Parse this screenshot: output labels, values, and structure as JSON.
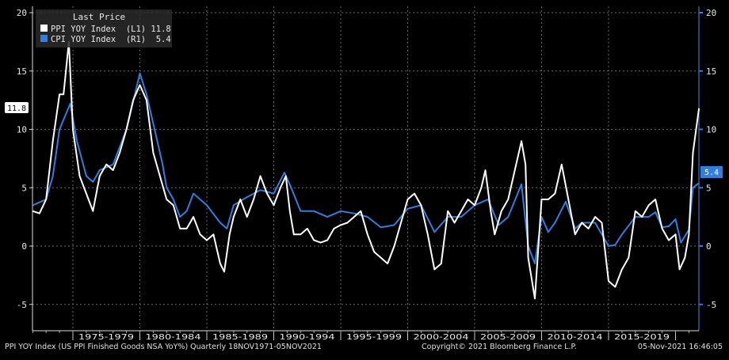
{
  "chart_data": {
    "type": "line",
    "title": "",
    "legend": {
      "header": "Last Price",
      "placement": "top-left",
      "entries": [
        {
          "label": "PPI YOY Index  (L1) 11.8",
          "color": "#ffffff"
        },
        {
          "label": "CPI YOY Index  (R1)  5.4",
          "color": "#2f7fe0"
        }
      ]
    },
    "xlim": [
      1971.9,
      2021.85
    ],
    "ylim_left": [
      -7,
      20
    ],
    "ylim_right": [
      -7,
      20
    ],
    "yticks": [
      -5,
      0,
      5,
      10,
      15,
      20
    ],
    "xtick_labels": [
      "1975-1979",
      "1980-1984",
      "1985-1989",
      "1990-1994",
      "1995-1999",
      "2000-2004",
      "2005-2009",
      "2010-2014",
      "2015-2019"
    ],
    "xtick_starts": [
      1975,
      1980,
      1985,
      1990,
      1995,
      2000,
      2005,
      2010,
      2015
    ],
    "grid": true,
    "last_value_labels": {
      "left": "11.8",
      "right": "5.4"
    },
    "series": [
      {
        "name": "PPI YOY Index",
        "axis": "left",
        "color": "#ffffff",
        "x": [
          1972,
          1972.5,
          1973,
          1973.5,
          1974,
          1974.3,
          1974.7,
          1975,
          1975.5,
          1976,
          1976.5,
          1977,
          1977.5,
          1978,
          1978.5,
          1979,
          1979.5,
          1980,
          1980.5,
          1981,
          1981.5,
          1982,
          1982.5,
          1983,
          1983.5,
          1984,
          1984.5,
          1985,
          1985.5,
          1986,
          1986.3,
          1986.7,
          1987,
          1987.5,
          1988,
          1988.5,
          1989,
          1989.5,
          1990,
          1990.5,
          1990.9,
          1991.2,
          1991.5,
          1992,
          1992.5,
          1993,
          1993.5,
          1994,
          1994.5,
          1995,
          1995.5,
          1996,
          1996.5,
          1997,
          1997.5,
          1998,
          1998.5,
          1999,
          1999.5,
          2000,
          2000.5,
          2001,
          2001.5,
          2002,
          2002.5,
          2003,
          2003.5,
          2004,
          2004.5,
          2005,
          2005.5,
          2005.8,
          2006.2,
          2006.5,
          2007,
          2007.5,
          2008,
          2008.5,
          2008.8,
          2009,
          2009.5,
          2010,
          2010.5,
          2011,
          2011.5,
          2012,
          2012.5,
          2013,
          2013.5,
          2014,
          2014.5,
          2015,
          2015.5,
          2016,
          2016.5,
          2017,
          2017.5,
          2018,
          2018.5,
          2019,
          2019.5,
          2020,
          2020.3,
          2020.7,
          2021,
          2021.3,
          2021.75
        ],
        "values": [
          3,
          2.8,
          4,
          9,
          13,
          13,
          17.5,
          10,
          6,
          4.5,
          3,
          6,
          7,
          6.5,
          8,
          10,
          12.5,
          13.8,
          12.5,
          8,
          6,
          4,
          3.5,
          1.5,
          1.5,
          2.5,
          1,
          0.5,
          1,
          -1.5,
          -2.2,
          1,
          2.5,
          4,
          2.5,
          4,
          6,
          4.5,
          3.5,
          5,
          6,
          3,
          1,
          1,
          1.5,
          0.5,
          0.3,
          0.5,
          1.5,
          1.8,
          2,
          2.5,
          3,
          1,
          -0.5,
          -1,
          -1.5,
          0,
          2,
          4,
          4.5,
          3.5,
          1,
          -2,
          -1.5,
          3,
          2,
          3,
          4,
          3.5,
          5,
          6.5,
          3,
          1,
          3,
          4,
          6.5,
          9,
          7,
          -1,
          -4.5,
          4,
          4,
          4.5,
          7,
          4,
          1,
          2,
          1.5,
          2.5,
          2,
          -3,
          -3.5,
          -2,
          -1,
          3,
          2.5,
          3.5,
          4,
          1.5,
          0.5,
          1,
          -2,
          -1,
          1,
          8,
          11.8
        ]
      },
      {
        "name": "CPI YOY Index",
        "axis": "right",
        "color": "#2f7fe0",
        "x": [
          1972,
          1973,
          1973.5,
          1974,
          1974.8,
          1975.3,
          1976,
          1976.5,
          1977,
          1978,
          1979,
          1980,
          1980.5,
          1981,
          1981.7,
          1982,
          1982.5,
          1983,
          1983.5,
          1984,
          1985,
          1986,
          1986.5,
          1987,
          1988,
          1989,
          1990,
          1990.8,
          1991.3,
          1992,
          1993,
          1994,
          1995,
          1996,
          1997,
          1998,
          1999,
          2000,
          2001,
          2002,
          2003,
          2004,
          2005,
          2006,
          2006.8,
          2007.5,
          2008.5,
          2009,
          2009.5,
          2010,
          2010.5,
          2011,
          2011.8,
          2012.5,
          2013,
          2014,
          2015,
          2015.5,
          2016,
          2017,
          2018,
          2018.5,
          2019,
          2019.5,
          2020,
          2020.4,
          2021,
          2021.3,
          2021.75
        ],
        "values": [
          3.5,
          4,
          6,
          10,
          12.2,
          9,
          6,
          5.5,
          6.5,
          7,
          10,
          14.8,
          13,
          10.5,
          7,
          5,
          4,
          2.5,
          3,
          4.5,
          3.5,
          2,
          1.5,
          3.5,
          4.2,
          4.8,
          4.5,
          6.3,
          5,
          3,
          3,
          2.5,
          3,
          2.8,
          2.5,
          1.6,
          1.8,
          3.2,
          3.5,
          1.2,
          2.5,
          2.5,
          3.5,
          4,
          1.8,
          2.5,
          5.3,
          0,
          -1.5,
          2.5,
          1.2,
          2,
          3.8,
          1.5,
          2,
          2,
          0,
          0.1,
          1,
          2.5,
          2.5,
          2.9,
          1.6,
          1.7,
          2.3,
          0.3,
          1.4,
          5,
          5.4
        ]
      }
    ]
  },
  "footer": {
    "description": "PPI YOY Index (US PPI Finished Goods NSA YoY%)  Quarterly 18NOV1971-05NOV2021",
    "copyright": "Copyright© 2021 Bloomberg Finance L.P.",
    "timestamp": "05-Nov-2021 16:46:05"
  }
}
